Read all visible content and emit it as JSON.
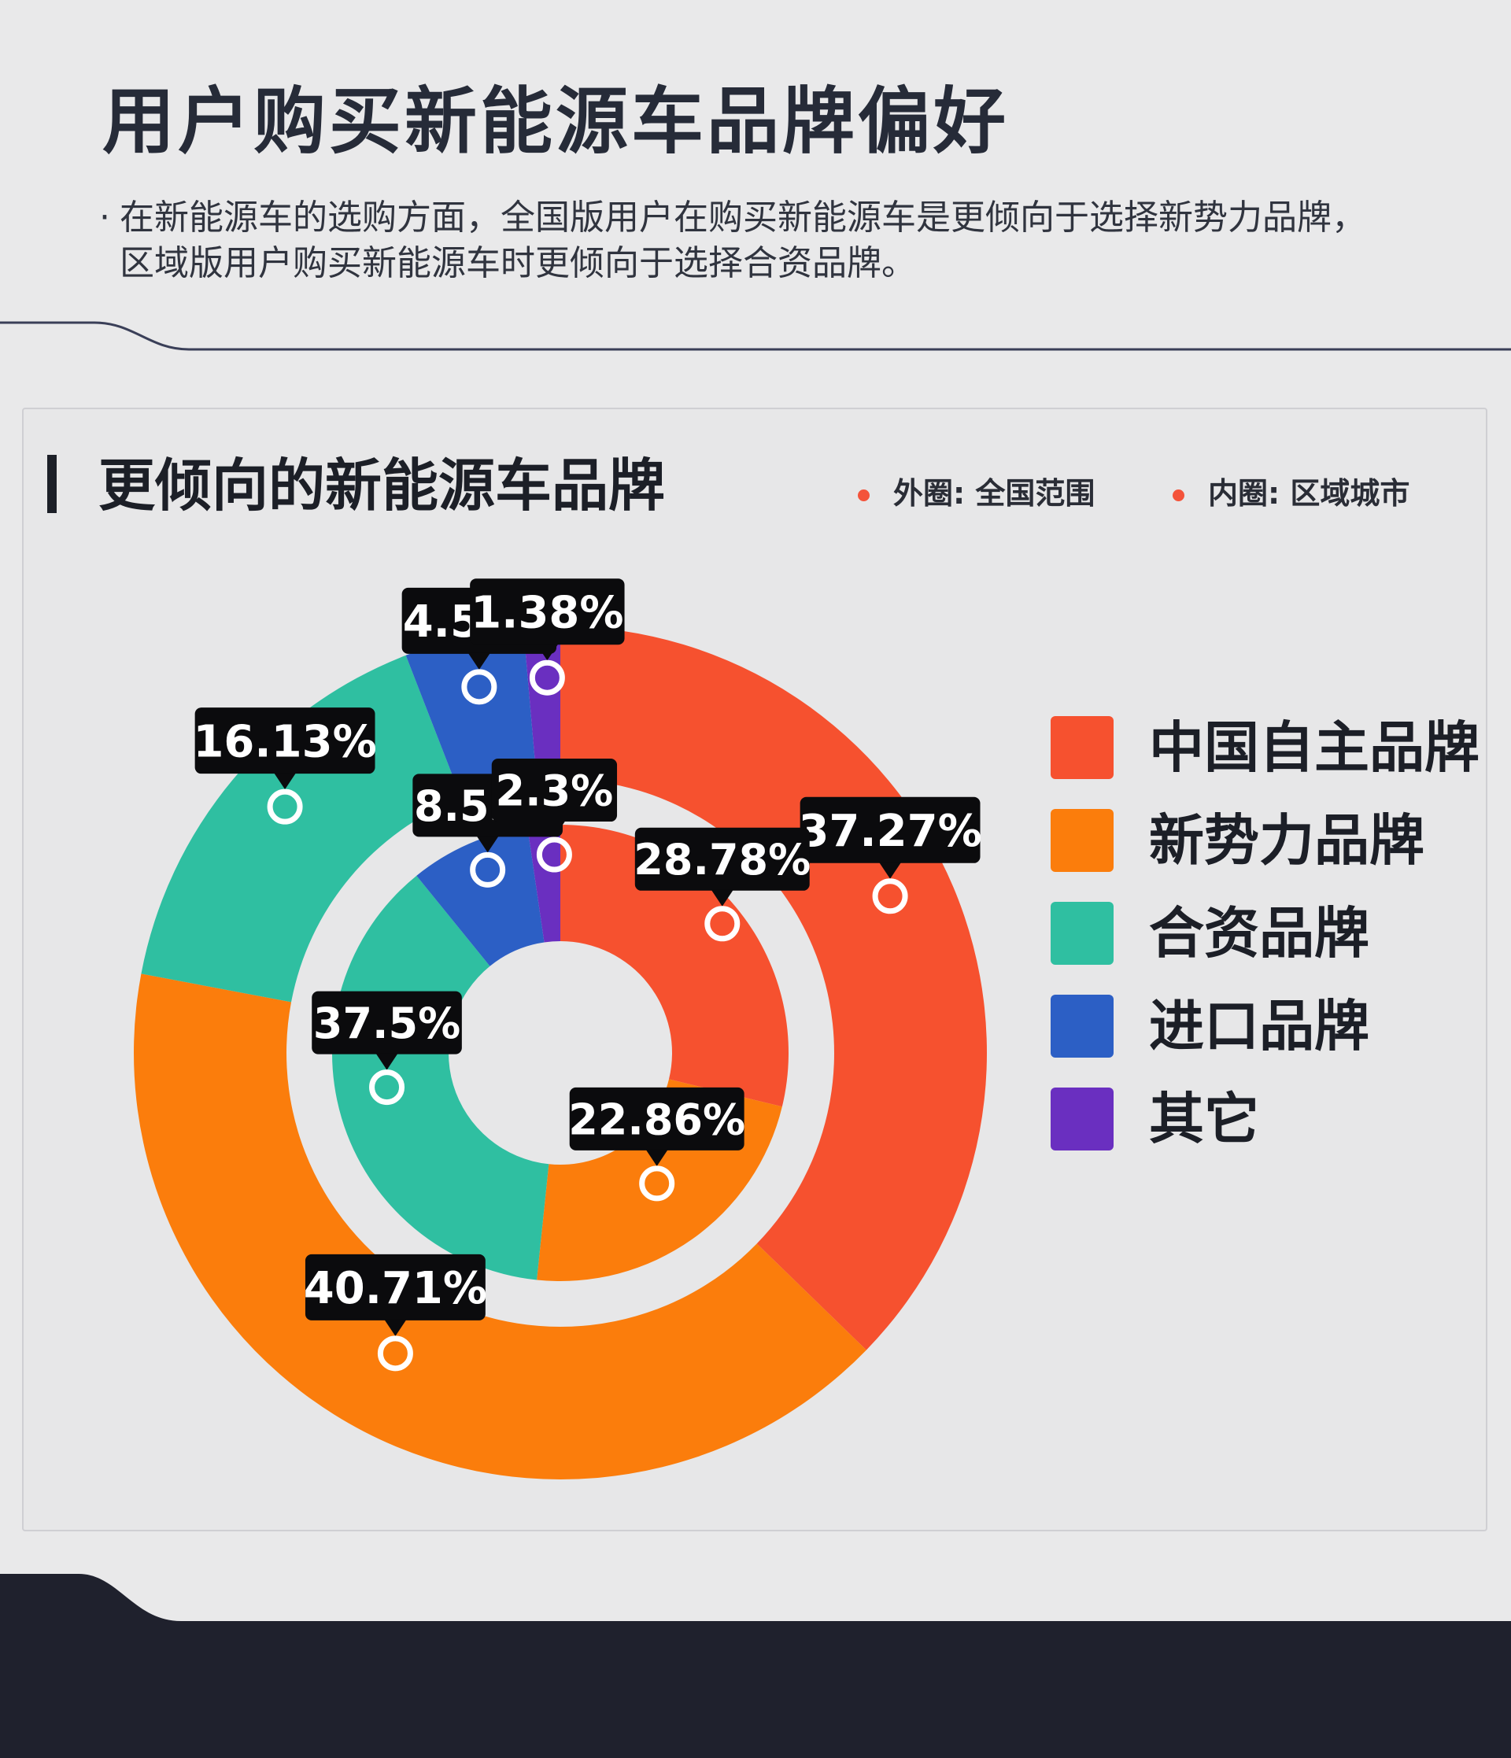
{
  "header": {
    "title": "用户购买新能源车品牌偏好",
    "bullet": "·",
    "intro_line1": "在新能源车的选购方面，全国版用户在购买新能源车是更倾向于选择新势力品牌，",
    "intro_line2": "区域版用户购买新能源车时更倾向于选择合资品牌。"
  },
  "card": {
    "title": "更倾向的新能源车品牌",
    "ring_legend": {
      "outer": "外圈: 全国范围",
      "inner": "内圈: 区域城市"
    }
  },
  "chart_data": {
    "type": "pie",
    "title": "更倾向的新能源车品牌",
    "categories": [
      "中国自主品牌",
      "新势力品牌",
      "合资品牌",
      "进口品牌",
      "其它"
    ],
    "colors": [
      "#f6512f",
      "#fb7d0c",
      "#2fbfa1",
      "#2c5fc5",
      "#6a2fc0"
    ],
    "series": [
      {
        "name": "外圈: 全国范围",
        "ring": "outer",
        "values": [
          37.27,
          40.71,
          16.13,
          4.52,
          1.38
        ],
        "labels": [
          "37.27%",
          "40.71%",
          "16.13%",
          "4.52%",
          "1.38%"
        ]
      },
      {
        "name": "内圈: 区域城市",
        "ring": "inner",
        "values": [
          28.78,
          22.86,
          37.5,
          8.55,
          2.3
        ],
        "labels": [
          "28.78%",
          "22.86%",
          "37.5%",
          "8.55%",
          "2.3%"
        ]
      }
    ],
    "legend_position": "right"
  },
  "theme": {
    "background": "#e9e9ea",
    "footer": "#1f212d",
    "accent": "#f4533a"
  }
}
